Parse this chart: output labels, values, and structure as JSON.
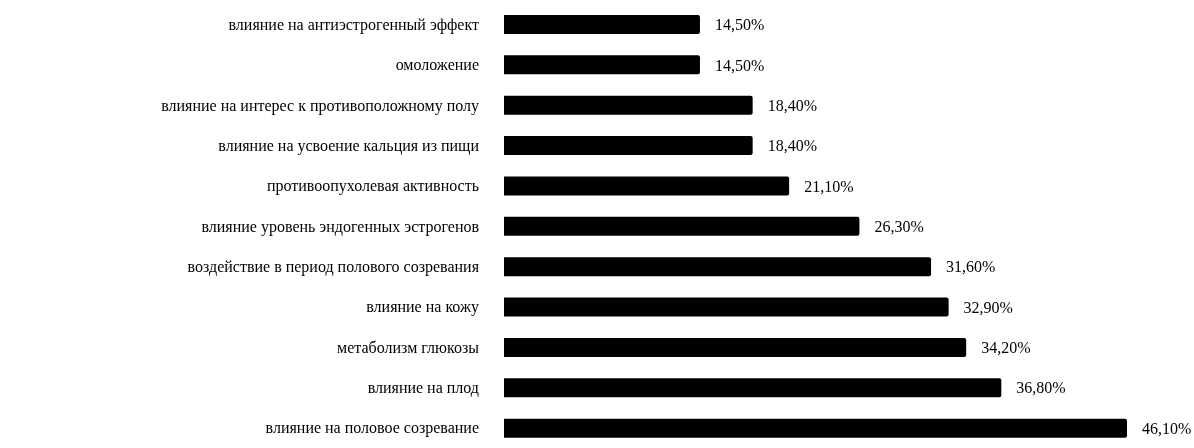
{
  "chart_data": {
    "type": "bar",
    "orientation": "horizontal",
    "categories": [
      "влияние на антиэстрогенный эффект",
      "омоложение",
      "влияние на интерес к противоположному полу",
      "влияние на усвоение кальция из пищи",
      "противоопухолевая активность",
      "влияние уровень эндогенных эстрогенов",
      "воздействие в период полового созревания",
      "влияние на кожу",
      "метаболизм глюкозы",
      "влияние на плод",
      "влияние на половое созревание"
    ],
    "values": [
      14.5,
      14.5,
      18.4,
      18.4,
      21.1,
      26.3,
      31.6,
      32.9,
      34.2,
      36.8,
      46.1
    ],
    "value_labels": [
      "14,50%",
      "14,50%",
      "18,40%",
      "18,40%",
      "21,10%",
      "26,30%",
      "31,60%",
      "32,90%",
      "34,20%",
      "36,80%",
      "46,10%"
    ],
    "color": "#000000",
    "tick_labels": "y"
  }
}
